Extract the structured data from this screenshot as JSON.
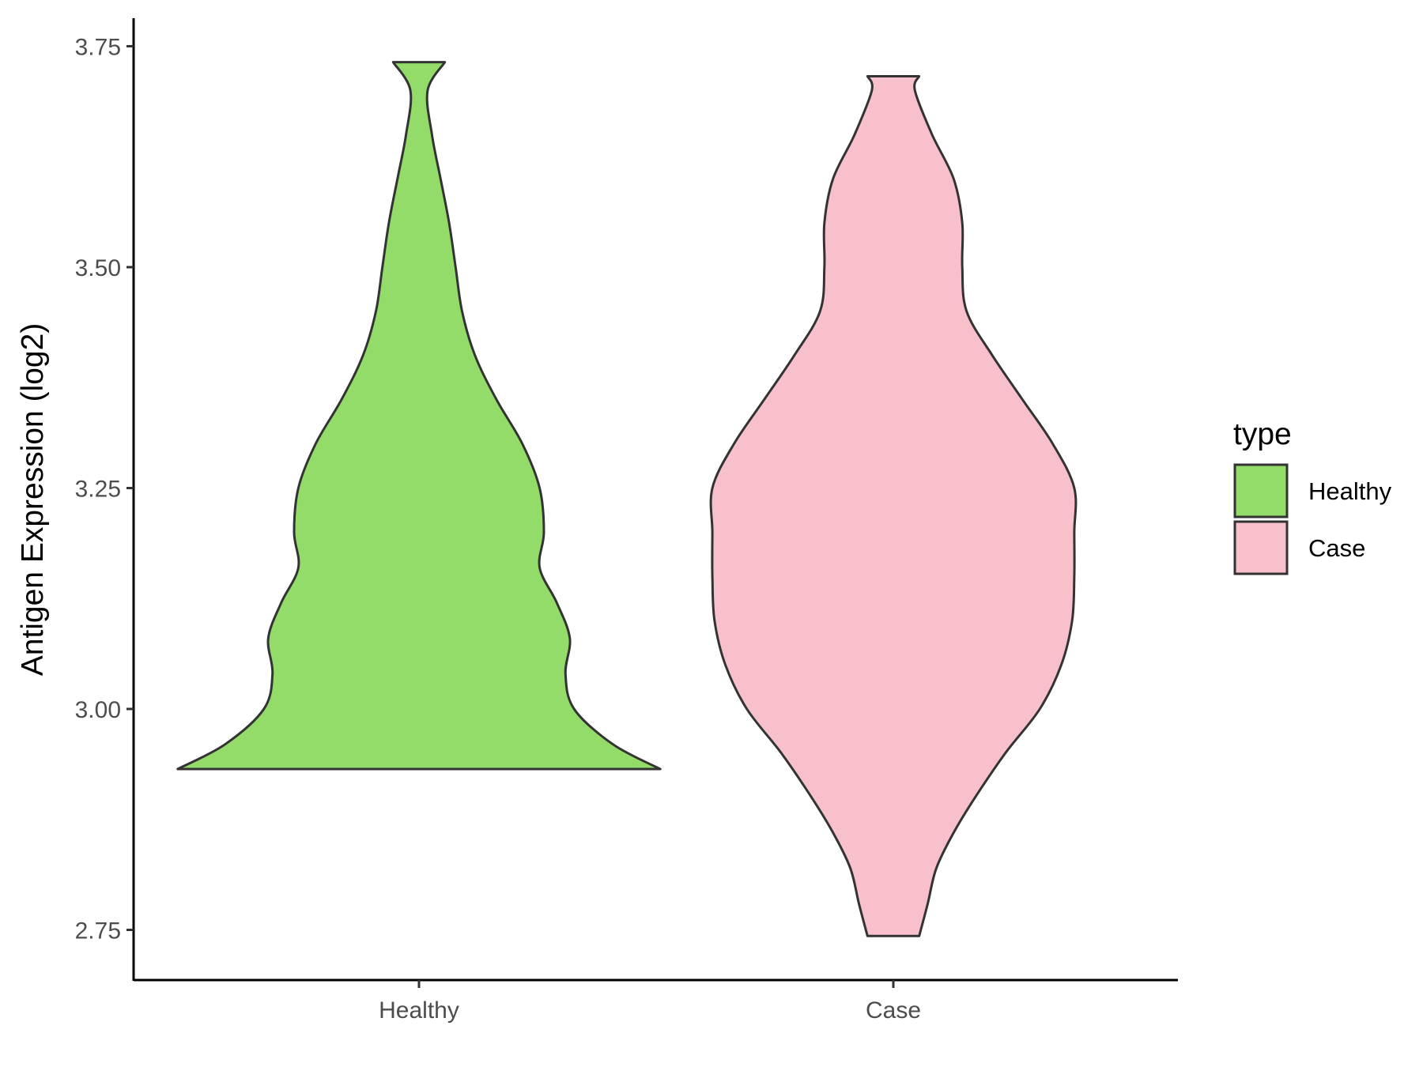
{
  "chart_data": {
    "type": "violin",
    "ylabel": "Antigen Expression (log2)",
    "xlabel": "",
    "ylim": [
      2.695,
      3.78
    ],
    "yticks": [
      "2.75",
      "3.00",
      "3.25",
      "3.50",
      "3.75"
    ],
    "categories": [
      "Healthy",
      "Case"
    ],
    "legend": {
      "title": "type",
      "position": "right",
      "items": [
        "Healthy",
        "Case"
      ]
    },
    "colors": {
      "Healthy": "#93dc6a",
      "Case": "#f7c0cb",
      "outline": "#333333"
    },
    "series": [
      {
        "name": "Healthy",
        "min": 2.932,
        "max": 3.732,
        "density_profile": [
          [
            2.932,
            0.56
          ],
          [
            2.96,
            0.45
          ],
          [
            3.0,
            0.36
          ],
          [
            3.04,
            0.34
          ],
          [
            3.08,
            0.35
          ],
          [
            3.12,
            0.32
          ],
          [
            3.16,
            0.28
          ],
          [
            3.2,
            0.29
          ],
          [
            3.25,
            0.28
          ],
          [
            3.3,
            0.24
          ],
          [
            3.35,
            0.18
          ],
          [
            3.4,
            0.13
          ],
          [
            3.45,
            0.1
          ],
          [
            3.5,
            0.085
          ],
          [
            3.55,
            0.07
          ],
          [
            3.6,
            0.05
          ],
          [
            3.65,
            0.03
          ],
          [
            3.7,
            0.02
          ],
          [
            3.732,
            0.06
          ]
        ]
      },
      {
        "name": "Case",
        "min": 2.743,
        "max": 3.716,
        "density_profile": [
          [
            2.743,
            0.06
          ],
          [
            2.78,
            0.08
          ],
          [
            2.82,
            0.1
          ],
          [
            2.86,
            0.14
          ],
          [
            2.9,
            0.19
          ],
          [
            2.95,
            0.26
          ],
          [
            3.0,
            0.34
          ],
          [
            3.05,
            0.39
          ],
          [
            3.1,
            0.415
          ],
          [
            3.15,
            0.42
          ],
          [
            3.2,
            0.42
          ],
          [
            3.25,
            0.42
          ],
          [
            3.3,
            0.37
          ],
          [
            3.35,
            0.3
          ],
          [
            3.4,
            0.23
          ],
          [
            3.45,
            0.17
          ],
          [
            3.5,
            0.16
          ],
          [
            3.55,
            0.16
          ],
          [
            3.6,
            0.14
          ],
          [
            3.65,
            0.09
          ],
          [
            3.7,
            0.05
          ],
          [
            3.716,
            0.06
          ]
        ]
      }
    ]
  }
}
